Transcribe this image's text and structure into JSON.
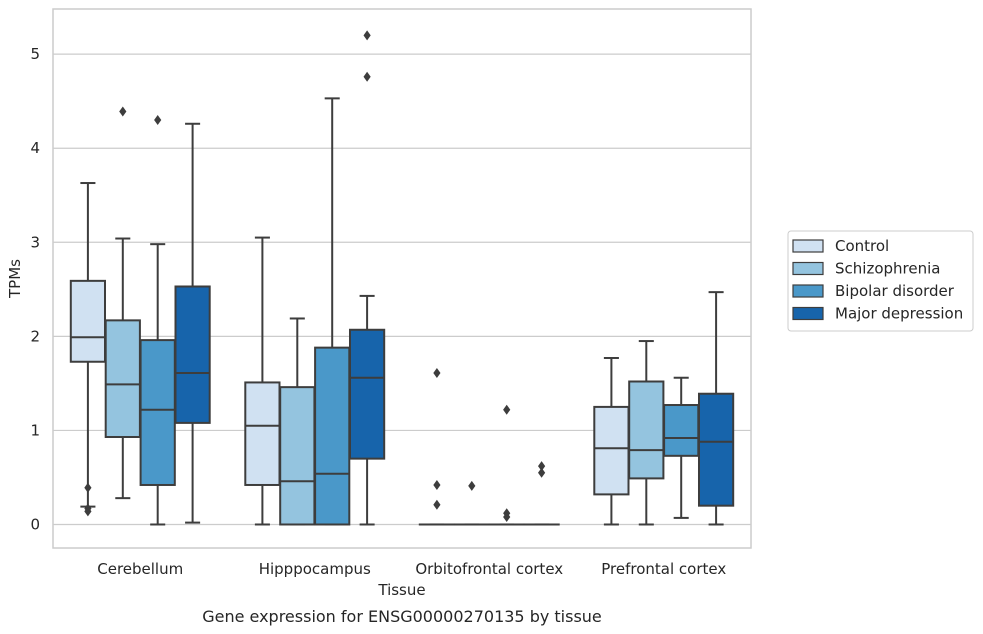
{
  "chart_data": {
    "type": "box",
    "xlabel": "Tissue",
    "ylabel": "TPMs",
    "caption": "Gene expression for ENSG00000270135 by tissue",
    "ylim": [
      -0.25,
      5.48
    ],
    "yticks": [
      "0",
      "1",
      "2",
      "3",
      "4",
      "5"
    ],
    "grid": true,
    "legend_position": "right",
    "categories": [
      "Cerebellum",
      "Hipppocampus",
      "Orbitofrontal cortex",
      "Prefrontal cortex"
    ],
    "series": [
      {
        "name": "Control",
        "color": "#d0e1f2",
        "boxes": [
          {
            "whislo": 0.19,
            "q1": 1.73,
            "med": 1.99,
            "q3": 2.59,
            "whishi": 3.63,
            "fliers": [
              0.39,
              0.17,
              0.14
            ]
          },
          {
            "whislo": 0.0,
            "q1": 0.42,
            "med": 1.05,
            "q3": 1.51,
            "whishi": 3.05,
            "fliers": []
          },
          {
            "whislo": 0.0,
            "q1": 0.0,
            "med": 0.0,
            "q3": 0.0,
            "whishi": 0.0,
            "fliers": [
              1.61,
              0.42,
              0.21
            ]
          },
          {
            "whislo": 0.0,
            "q1": 0.32,
            "med": 0.81,
            "q3": 1.25,
            "whishi": 1.77,
            "fliers": []
          }
        ]
      },
      {
        "name": "Schizophrenia",
        "color": "#94c4df",
        "boxes": [
          {
            "whislo": 0.28,
            "q1": 0.93,
            "med": 1.49,
            "q3": 2.17,
            "whishi": 3.04,
            "fliers": [
              4.39
            ]
          },
          {
            "whislo": 0.0,
            "q1": 0.0,
            "med": 0.46,
            "q3": 1.46,
            "whishi": 2.19,
            "fliers": []
          },
          {
            "whislo": 0.0,
            "q1": 0.0,
            "med": 0.0,
            "q3": 0.0,
            "whishi": 0.0,
            "fliers": [
              0.41
            ]
          },
          {
            "whislo": 0.0,
            "q1": 0.49,
            "med": 0.79,
            "q3": 1.52,
            "whishi": 1.95,
            "fliers": []
          }
        ]
      },
      {
        "name": "Bipolar disorder",
        "color": "#4a98c9",
        "boxes": [
          {
            "whislo": 0.0,
            "q1": 0.42,
            "med": 1.22,
            "q3": 1.96,
            "whishi": 2.98,
            "fliers": [
              4.3
            ]
          },
          {
            "whislo": 0.0,
            "q1": 0.0,
            "med": 0.54,
            "q3": 1.88,
            "whishi": 4.53,
            "fliers": []
          },
          {
            "whislo": 0.0,
            "q1": 0.0,
            "med": 0.0,
            "q3": 0.0,
            "whishi": 0.0,
            "fliers": [
              1.22,
              0.12,
              0.08
            ]
          },
          {
            "whislo": 0.07,
            "q1": 0.73,
            "med": 0.92,
            "q3": 1.27,
            "whishi": 1.56,
            "fliers": []
          }
        ]
      },
      {
        "name": "Major depression",
        "color": "#1764ab",
        "boxes": [
          {
            "whislo": 0.02,
            "q1": 1.08,
            "med": 1.61,
            "q3": 2.53,
            "whishi": 4.26,
            "fliers": []
          },
          {
            "whislo": 0.0,
            "q1": 0.7,
            "med": 1.56,
            "q3": 2.07,
            "whishi": 2.43,
            "fliers": [
              5.2,
              4.76
            ]
          },
          {
            "whislo": 0.0,
            "q1": 0.0,
            "med": 0.0,
            "q3": 0.0,
            "whishi": 0.0,
            "fliers": [
              0.62,
              0.55
            ]
          },
          {
            "whislo": 0.0,
            "q1": 0.2,
            "med": 0.88,
            "q3": 1.39,
            "whishi": 2.47,
            "fliers": []
          }
        ]
      }
    ]
  }
}
